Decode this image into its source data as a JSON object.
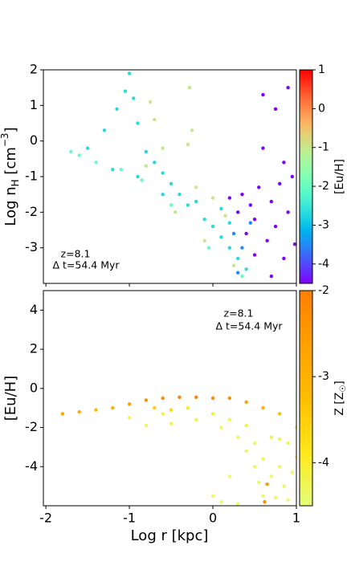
{
  "chart_data": [
    {
      "type": "scatter",
      "y_label": [
        "Log n",
        "H",
        " [cm",
        "−3",
        "]"
      ],
      "annotations": [
        "z=8.1",
        "Δ t=54.4 Myr"
      ],
      "xlim": [
        -2.03,
        1
      ],
      "ylim": [
        -4,
        2
      ],
      "xticks": [
        -2,
        -1,
        0,
        1
      ],
      "xtick_labels": false,
      "yticks": [
        -3,
        -2,
        -1,
        0,
        1,
        2
      ],
      "colorbar": {
        "label": "[Eu/H]",
        "colormap": "rainbow",
        "clim": [
          -4.5,
          1
        ],
        "ticks": [
          -4,
          -3,
          -2,
          -1,
          0,
          1
        ]
      },
      "series": [
        {
          "x": [
            -1.5,
            -1.3,
            -1.15,
            -1.05,
            -1.0,
            -0.95,
            -0.9,
            -0.8,
            -0.7,
            -0.6,
            -0.5,
            -0.4,
            -0.3,
            -0.2,
            -0.1,
            0.0,
            0.1,
            0.2,
            0.3,
            0.4,
            -1.2,
            -0.9,
            -0.6,
            0.1,
            0.2,
            -1.7,
            -1.6,
            -1.4,
            -1.1,
            -0.85,
            -0.5,
            -0.05,
            0.35,
            -0.75,
            -0.7,
            -0.6,
            -0.3,
            -0.28,
            -0.25,
            -0.2,
            0.0,
            0.15,
            -0.45,
            -0.1,
            0.25,
            -0.8,
            0.2,
            0.3,
            0.35,
            0.4,
            0.45,
            0.5,
            0.55,
            0.6,
            0.6,
            0.65,
            0.7,
            0.75,
            0.75,
            0.8,
            0.85,
            0.9,
            0.9,
            0.95,
            0.98,
            0.5,
            0.7,
            0.85,
            0.25,
            0.35,
            0.45,
            0.3
          ],
          "y": [
            -0.2,
            0.3,
            0.9,
            1.4,
            1.9,
            1.2,
            0.5,
            -0.3,
            -0.6,
            -0.9,
            -1.2,
            -1.5,
            -1.8,
            -1.7,
            -2.2,
            -2.4,
            -2.7,
            -3.0,
            -3.3,
            -3.6,
            -0.8,
            -1.0,
            -1.5,
            -1.9,
            -2.3,
            -0.3,
            -0.4,
            -0.6,
            -0.8,
            -1.1,
            -1.8,
            -3.0,
            -3.8,
            1.1,
            0.6,
            -0.2,
            -0.1,
            1.5,
            0.3,
            -1.3,
            -1.6,
            -2.1,
            -2.0,
            -2.8,
            -3.5,
            -0.7,
            -1.6,
            -2.0,
            -1.5,
            -2.6,
            -1.8,
            -2.2,
            -1.3,
            -0.2,
            1.3,
            -2.8,
            -1.7,
            0.9,
            -2.4,
            -1.2,
            -3.3,
            -2.0,
            1.5,
            -1.0,
            -2.9,
            -3.2,
            -3.8,
            -0.6,
            -2.6,
            -3.0,
            -2.3,
            -3.7
          ],
          "color_values": [
            -2.7,
            -2.7,
            -2.7,
            -2.7,
            -2.7,
            -2.7,
            -2.7,
            -2.7,
            -2.7,
            -2.7,
            -2.7,
            -2.7,
            -2.7,
            -2.7,
            -2.7,
            -2.7,
            -2.7,
            -2.7,
            -2.7,
            -2.7,
            -2.7,
            -2.7,
            -2.7,
            -2.7,
            -2.7,
            -2.0,
            -2.0,
            -2.0,
            -2.0,
            -2.0,
            -2.0,
            -2.0,
            -2.0,
            -1.0,
            -1.0,
            -1.0,
            -1.0,
            -1.0,
            -1.0,
            -1.0,
            -1.0,
            -1.0,
            -1.0,
            -1.0,
            -1.0,
            -1.0,
            -4.5,
            -4.5,
            -4.5,
            -4.5,
            -4.5,
            -4.5,
            -4.5,
            -4.5,
            -4.5,
            -4.5,
            -4.5,
            -4.5,
            -4.5,
            -4.5,
            -4.5,
            -4.5,
            -4.5,
            -4.5,
            -4.5,
            -4.5,
            -4.5,
            -4.5,
            -3.5,
            -3.5,
            -3.5,
            -3.5
          ]
        }
      ]
    },
    {
      "type": "scatter",
      "x_label": "Log r [kpc]",
      "y_label": [
        "[Eu/H]"
      ],
      "annotations": [
        "z=8.1",
        "Δ t=54.4 Myr"
      ],
      "xlim": [
        -2.03,
        1
      ],
      "ylim": [
        -6,
        5
      ],
      "xticks": [
        -2,
        -1,
        0,
        1
      ],
      "xtick_labels": true,
      "yticks": [
        -4,
        -2,
        0,
        2,
        4
      ],
      "colorbar": {
        "label": [
          "Z [Z",
          "☉",
          "]"
        ],
        "colormap": "wistia",
        "clim": [
          -4.5,
          -2
        ],
        "ticks": [
          -4,
          -3,
          -2
        ]
      },
      "series": [
        {
          "x": [
            -1.8,
            -1.6,
            -1.4,
            -1.2,
            -1.0,
            -0.8,
            -0.6,
            -0.4,
            -0.2,
            0.0,
            0.2,
            0.4,
            0.6,
            0.8,
            -1.0,
            -0.8,
            -0.6,
            -0.5,
            -0.3,
            -0.2,
            0.0,
            0.1,
            0.2,
            0.3,
            0.4,
            0.4,
            0.5,
            0.5,
            0.55,
            0.6,
            0.6,
            0.7,
            0.7,
            0.75,
            0.8,
            0.8,
            0.85,
            0.9,
            0.9,
            0.95,
            1.0,
            1.0,
            0.2,
            0.1,
            0.3,
            0.0,
            -0.5,
            -0.7,
            0.62,
            0.65
          ],
          "y": [
            -1.3,
            -1.2,
            -1.1,
            -1.0,
            -0.8,
            -0.6,
            -0.5,
            -0.45,
            -0.45,
            -0.5,
            -0.5,
            -0.7,
            -1.0,
            -1.3,
            -1.5,
            -1.9,
            -1.3,
            -1.8,
            -1.0,
            -1.6,
            -1.3,
            -2.0,
            -1.6,
            -2.5,
            -1.9,
            -3.2,
            -2.8,
            -4.0,
            -4.8,
            -3.6,
            -5.5,
            -2.5,
            -4.5,
            -5.6,
            -2.6,
            -4.0,
            -5.0,
            -2.8,
            -5.7,
            -4.3,
            -2.0,
            -3.5,
            -4.5,
            -5.8,
            -5.9,
            -5.5,
            -1.1,
            -1.0,
            -5.8,
            -4.9
          ],
          "color_values": [
            -2.8,
            -2.9,
            -3.2,
            -3.0,
            -2.6,
            -2.3,
            -2.2,
            -2.1,
            -2.1,
            -2.2,
            -2.3,
            -2.6,
            -3.0,
            -3.3,
            -4.2,
            -4.3,
            -4.1,
            -4.2,
            -4.0,
            -4.2,
            -4.1,
            -4.3,
            -4.2,
            -4.3,
            -4.2,
            -4.3,
            -4.4,
            -4.3,
            -4.4,
            -4.3,
            -4.4,
            -4.2,
            -4.4,
            -4.4,
            -4.2,
            -4.3,
            -4.4,
            -4.2,
            -4.4,
            -4.3,
            -4.0,
            -4.3,
            -4.4,
            -4.4,
            -4.4,
            -4.4,
            -3.6,
            -3.5,
            -2.3,
            -2.5
          ]
        }
      ]
    }
  ]
}
